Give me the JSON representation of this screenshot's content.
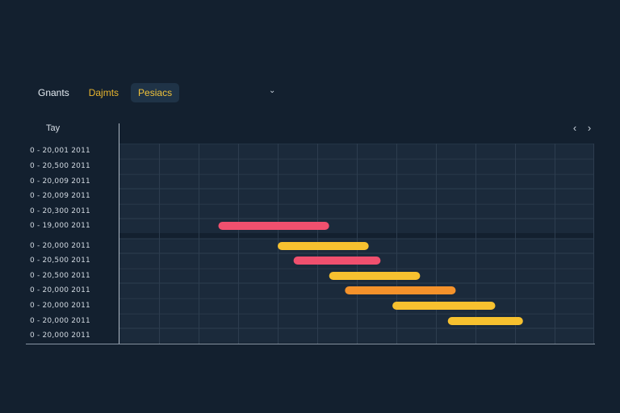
{
  "tabs": [
    {
      "label": "Gnants",
      "style": "plain",
      "active": false
    },
    {
      "label": "Dajmts",
      "style": "amber",
      "active": false
    },
    {
      "label": "Pesiacs",
      "style": "amber",
      "active": true
    }
  ],
  "dropdown_icon": "chevron-down-icon",
  "header": {
    "day_label": "Tay",
    "prev_icon": "chevron-left-icon",
    "next_icon": "chevron-right-icon"
  },
  "colors": {
    "background": "#13202f",
    "grid_fill": "#1b2a3b",
    "red": "#f0506e",
    "yellow": "#f7c12f",
    "orange": "#f5922b"
  },
  "rows": [
    {
      "label": "0 - 20,001 2011"
    },
    {
      "label": "0 - 20,500 2011"
    },
    {
      "label": "0 - 20,009 2011"
    },
    {
      "label": "0 - 20,009 2011"
    },
    {
      "label": "0 - 20,300 2011"
    },
    {
      "label": "0 - 19,000 2011"
    },
    {
      "label": "0 - 20,000 2011"
    },
    {
      "label": "0 - 20,500 2011"
    },
    {
      "label": "0 - 20,500 2011"
    },
    {
      "label": "0 - 20,000 2011"
    },
    {
      "label": "0 - 20,000 2011"
    },
    {
      "label": "0 - 20,000 2011"
    },
    {
      "label": "0 - 20,000 2011"
    }
  ],
  "timeline": {
    "columns": 12
  },
  "tasks": [
    {
      "row": 5,
      "start": 2.5,
      "end": 5.3,
      "color": "#f0506e"
    },
    {
      "row": 6,
      "start": 4.0,
      "end": 6.3,
      "color": "#f7c12f"
    },
    {
      "row": 7,
      "start": 4.4,
      "end": 6.6,
      "color": "#f0506e"
    },
    {
      "row": 8,
      "start": 5.3,
      "end": 7.6,
      "color": "#f7c12f"
    },
    {
      "row": 9,
      "start": 5.7,
      "end": 8.5,
      "color": "#f5922b"
    },
    {
      "row": 10,
      "start": 6.9,
      "end": 9.5,
      "color": "#f7c12f"
    },
    {
      "row": 11,
      "start": 8.3,
      "end": 10.2,
      "color": "#f7c12f"
    }
  ]
}
